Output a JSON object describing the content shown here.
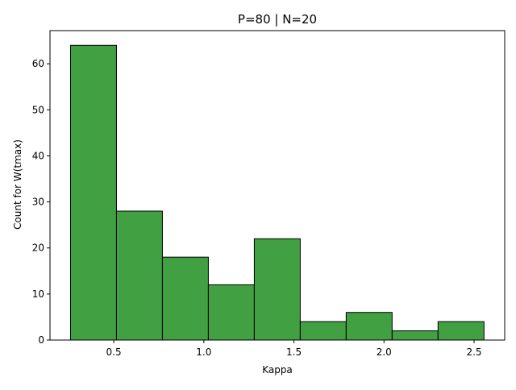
{
  "chart_data": {
    "type": "bar",
    "title": "P=80 | N=20",
    "xlabel": "Kappa",
    "ylabel": "Count for W(tmax)",
    "bins": [
      {
        "start": 0.26,
        "end": 0.515,
        "count": 64
      },
      {
        "start": 0.515,
        "end": 0.77,
        "count": 28
      },
      {
        "start": 0.77,
        "end": 1.025,
        "count": 18
      },
      {
        "start": 1.025,
        "end": 1.28,
        "count": 12
      },
      {
        "start": 1.28,
        "end": 1.535,
        "count": 22
      },
      {
        "start": 1.535,
        "end": 1.79,
        "count": 4
      },
      {
        "start": 1.79,
        "end": 2.045,
        "count": 6
      },
      {
        "start": 2.045,
        "end": 2.3,
        "count": 2
      },
      {
        "start": 2.3,
        "end": 2.555,
        "count": 4
      }
    ],
    "xlim": [
      0.146,
      2.67
    ],
    "ylim": [
      0,
      67.2
    ],
    "xticks": [
      0.5,
      1.0,
      1.5,
      2.0,
      2.5
    ],
    "xtick_labels": [
      "0.5",
      "1.0",
      "1.5",
      "2.0",
      "2.5"
    ],
    "yticks": [
      0,
      10,
      20,
      30,
      40,
      50,
      60
    ],
    "ytick_labels": [
      "0",
      "10",
      "20",
      "30",
      "40",
      "50",
      "60"
    ],
    "grid": false,
    "bar_color": "#41a041",
    "edge_color": "#000000"
  }
}
